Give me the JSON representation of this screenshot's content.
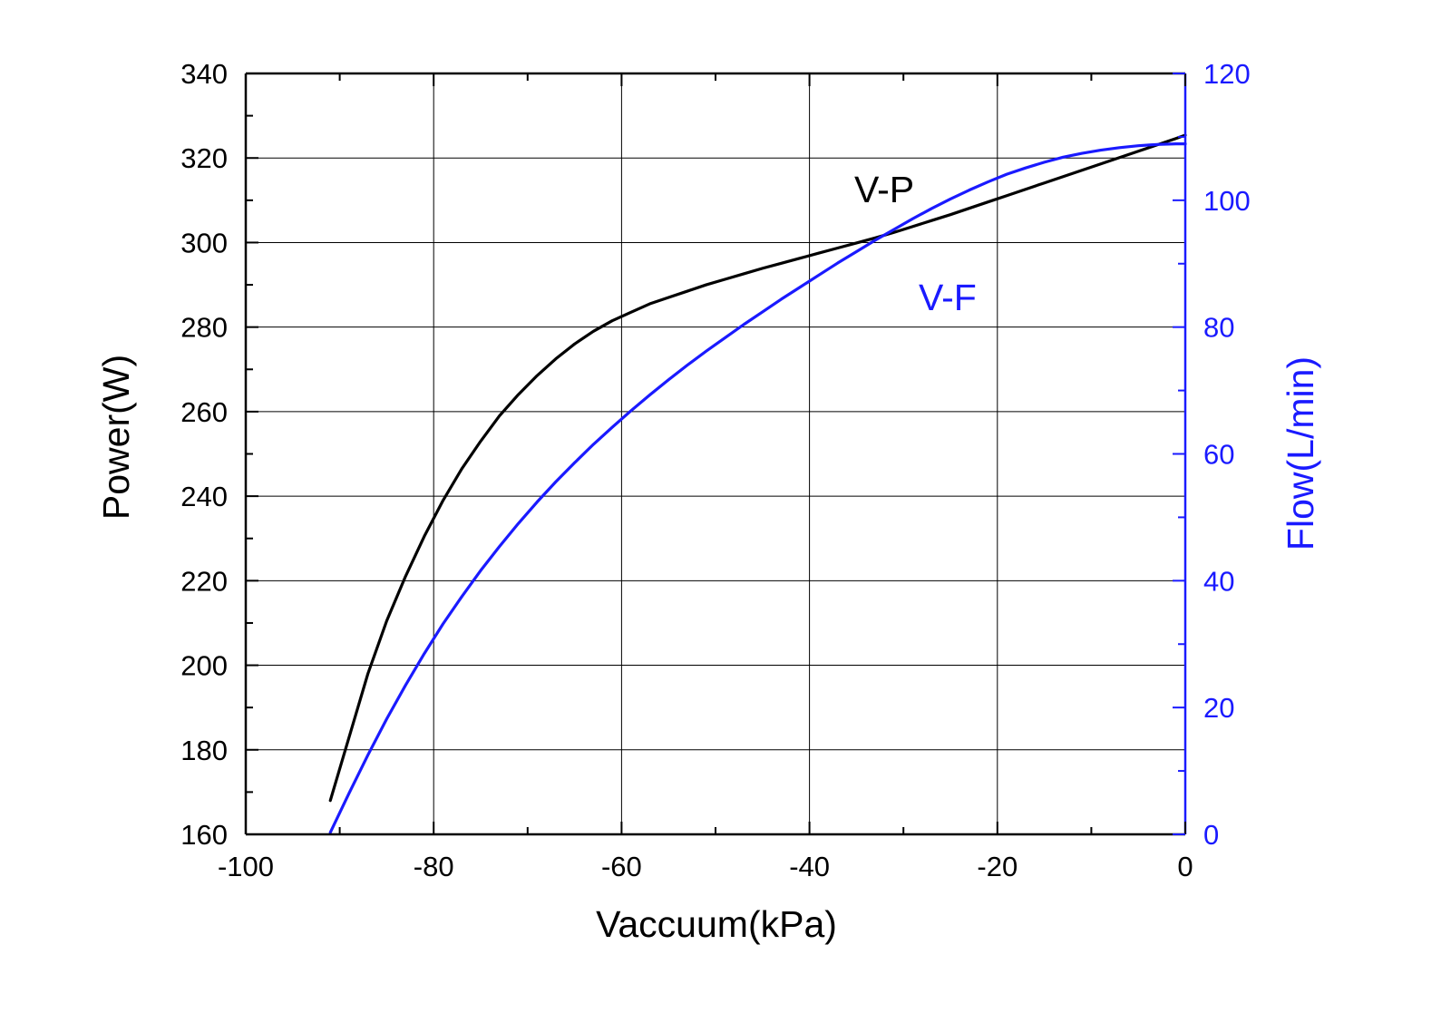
{
  "chart_data": {
    "type": "line",
    "title": "",
    "xlabel": "Vaccuum(kPa)",
    "ylabel": "Power(W)",
    "y2label": "Flow(L/min)",
    "xlim": [
      -100,
      0
    ],
    "ylim": [
      160,
      340
    ],
    "y2lim": [
      0,
      120
    ],
    "xticks": [
      -100,
      -80,
      -60,
      -40,
      -20,
      0
    ],
    "yticks": [
      160,
      180,
      200,
      220,
      240,
      260,
      280,
      300,
      320,
      340
    ],
    "y2ticks": [
      0,
      20,
      40,
      60,
      80,
      100,
      120
    ],
    "grid": true,
    "legend": "none",
    "colors": {
      "axis": "#000000",
      "right_axis": "#1a1aff",
      "grid": "#000000"
    },
    "series": [
      {
        "name": "V-P",
        "axis": "left",
        "color": "#000000",
        "x": [
          -91,
          -89,
          -87,
          -85,
          -83,
          -81,
          -79,
          -77,
          -75,
          -73,
          -71,
          -69,
          -67,
          -65,
          -63,
          -61,
          -59,
          -57,
          -55,
          -53,
          -51,
          -49,
          -47,
          -45,
          -43,
          -41,
          -39,
          -37,
          -35,
          -33,
          -31,
          -29,
          -27,
          -25,
          -23,
          -21,
          -19,
          -17,
          -15,
          -13,
          -11,
          -9,
          -7,
          -5,
          -3,
          -1,
          0
        ],
        "y": [
          168,
          183,
          198,
          210.5,
          221,
          230.5,
          239,
          246.5,
          253,
          259,
          264,
          268.5,
          272.5,
          276,
          279,
          281.5,
          283.5,
          285.5,
          287,
          288.5,
          290,
          291.3,
          292.6,
          293.9,
          295.1,
          296.3,
          297.5,
          298.7,
          299.9,
          301.1,
          302.4,
          303.8,
          305.2,
          306.6,
          308.1,
          309.6,
          311.1,
          312.6,
          314.1,
          315.6,
          317.1,
          318.6,
          320.1,
          321.6,
          323.1,
          324.6,
          325.4
        ]
      },
      {
        "name": "V-F",
        "axis": "right",
        "color": "#1a1aff",
        "x": [
          -91,
          -89,
          -87,
          -85,
          -83,
          -81,
          -79,
          -77,
          -75,
          -73,
          -71,
          -69,
          -67,
          -65,
          -63,
          -61,
          -59,
          -57,
          -55,
          -53,
          -51,
          -49,
          -47,
          -45,
          -43,
          -41,
          -39,
          -37,
          -35,
          -33,
          -31,
          -29,
          -27,
          -25,
          -23,
          -21,
          -19,
          -17,
          -15,
          -13,
          -11,
          -9,
          -7,
          -5,
          -3,
          -1,
          0
        ],
        "y": [
          0.3,
          6.5,
          12.5,
          18.2,
          23.5,
          28.5,
          33.2,
          37.5,
          41.6,
          45.4,
          49,
          52.4,
          55.6,
          58.6,
          61.5,
          64.2,
          66.8,
          69.3,
          71.7,
          74,
          76.2,
          78.3,
          80.4,
          82.4,
          84.4,
          86.3,
          88.2,
          90.1,
          91.9,
          93.7,
          95.4,
          97.1,
          98.7,
          100.2,
          101.6,
          102.9,
          104.1,
          105.1,
          106,
          106.8,
          107.4,
          107.9,
          108.3,
          108.6,
          108.8,
          108.9,
          108.9
        ]
      }
    ]
  }
}
